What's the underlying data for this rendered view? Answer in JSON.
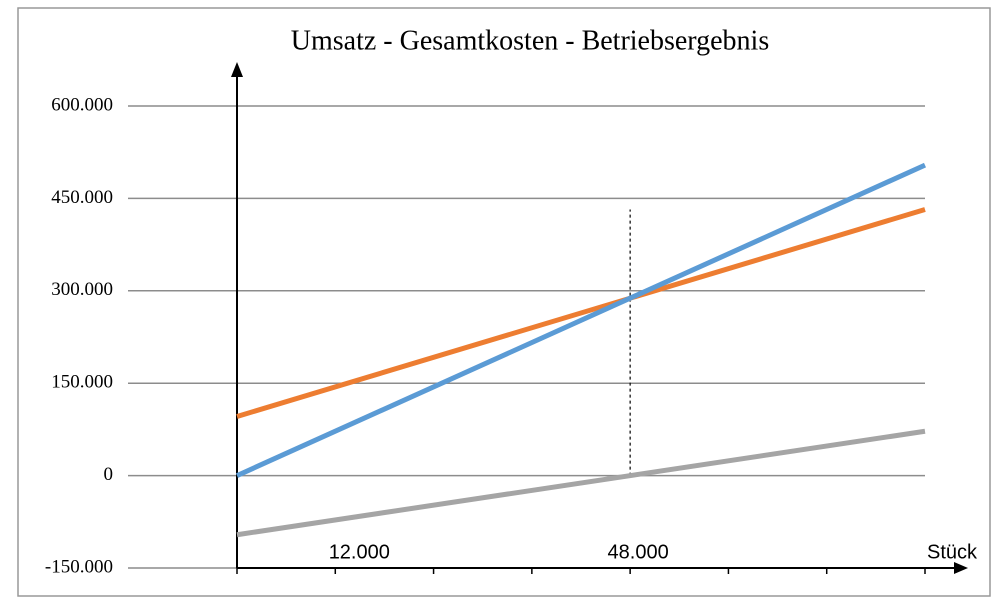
{
  "chart_data": {
    "type": "line",
    "title": "Umsatz - Gesamtkosten - Betriebsergebnis",
    "x_label": "Stück",
    "x": [
      0,
      84000
    ],
    "series": [
      {
        "color": "#ed7d31",
        "values": [
          96000,
          432000
        ]
      },
      {
        "color": "#5b9bd5",
        "values": [
          0,
          504000
        ]
      },
      {
        "color": "#a5a5a5",
        "values": [
          -96000,
          72000
        ]
      }
    ],
    "xlim": [
      0,
      84000
    ],
    "xticks": [
      {
        "value": 12000,
        "label": "12.000"
      },
      {
        "value": 48000,
        "label": "48.000"
      }
    ],
    "xtick_marks": [
      0,
      12000,
      24000,
      36000,
      48000,
      60000,
      72000,
      84000
    ],
    "ylim": [
      -150000,
      600000
    ],
    "yticks": [
      {
        "value": -150000,
        "label": "-150.000"
      },
      0,
      {
        "value": 150000,
        "label": "150.000"
      },
      {
        "value": 300000,
        "label": "300.000"
      },
      {
        "value": 450000,
        "label": "450.000"
      },
      {
        "value": 600000,
        "label": "600.000"
      }
    ],
    "marker_line": {
      "x": 48000,
      "y": [
        0,
        432000
      ]
    },
    "grid": true
  }
}
